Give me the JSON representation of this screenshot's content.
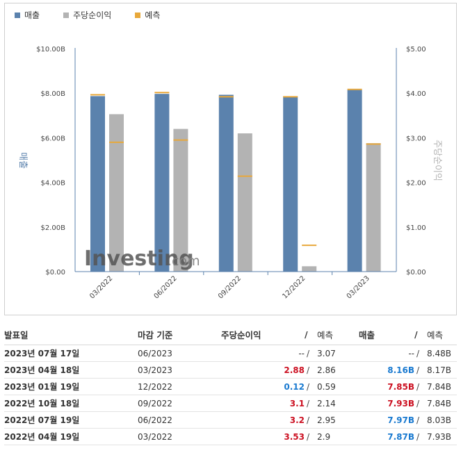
{
  "legend": {
    "items": [
      {
        "label": "매출",
        "color": "#5b82ad"
      },
      {
        "label": "주당순이익",
        "color": "#b3b3b3"
      },
      {
        "label": "예측",
        "color": "#e8a83a"
      }
    ]
  },
  "watermark": {
    "brand": "Investing",
    "suffix": ".com"
  },
  "chart_data": {
    "type": "bar",
    "categories": [
      "03/2022",
      "06/2022",
      "09/2022",
      "12/2022",
      "03/2023"
    ],
    "left_axis": {
      "label": "매출",
      "ticks": [
        "$0.00",
        "$2.00B",
        "$4.00B",
        "$6.00B",
        "$8.00B",
        "$10.00B"
      ],
      "ylim": [
        0,
        10
      ]
    },
    "right_axis": {
      "label": "주당순이익",
      "ticks": [
        "$0.00",
        "$1.00",
        "$2.00",
        "$3.00",
        "$4.00",
        "$5.00"
      ],
      "ylim": [
        0,
        5
      ]
    },
    "series": [
      {
        "name": "매출",
        "axis": "left",
        "values": [
          7.87,
          7.97,
          7.93,
          7.85,
          8.16
        ],
        "color": "#5b82ad"
      },
      {
        "name": "매출 예측",
        "axis": "left",
        "values": [
          7.93,
          8.03,
          7.84,
          7.84,
          8.17
        ],
        "color": "#e8a83a"
      },
      {
        "name": "주당순이익",
        "axis": "right",
        "values": [
          3.53,
          3.2,
          3.1,
          0.12,
          2.88
        ],
        "color": "#b3b3b3"
      },
      {
        "name": "주당순이익 예측",
        "axis": "right",
        "values": [
          2.9,
          2.95,
          2.14,
          0.59,
          2.86
        ],
        "color": "#e8a83a"
      }
    ],
    "grid": false
  },
  "table": {
    "headers": {
      "date": "발표일",
      "period": "마감 기준",
      "eps": "주당순이익",
      "slash": "/",
      "eps_forecast": "예측",
      "revenue": "매출",
      "revenue_forecast": "예측"
    },
    "rows": [
      {
        "date": "2023년 07월 17일",
        "period": "06/2023",
        "eps": "--",
        "eps_class": "neutral",
        "eps_forecast": "3.07",
        "revenue": "--",
        "revenue_class": "neutral",
        "revenue_forecast": "8.48B"
      },
      {
        "date": "2023년 04월 18일",
        "period": "03/2023",
        "eps": "2.88",
        "eps_class": "red",
        "eps_forecast": "2.86",
        "revenue": "8.16B",
        "revenue_class": "blue",
        "revenue_forecast": "8.17B"
      },
      {
        "date": "2023년 01월 19일",
        "period": "12/2022",
        "eps": "0.12",
        "eps_class": "blue",
        "eps_forecast": "0.59",
        "revenue": "7.85B",
        "revenue_class": "red",
        "revenue_forecast": "7.84B"
      },
      {
        "date": "2022년 10월 18일",
        "period": "09/2022",
        "eps": "3.1",
        "eps_class": "red",
        "eps_forecast": "2.14",
        "revenue": "7.93B",
        "revenue_class": "red",
        "revenue_forecast": "7.84B"
      },
      {
        "date": "2022년 07월 19일",
        "period": "06/2022",
        "eps": "3.2",
        "eps_class": "red",
        "eps_forecast": "2.95",
        "revenue": "7.97B",
        "revenue_class": "blue",
        "revenue_forecast": "8.03B"
      },
      {
        "date": "2022년 04월 19일",
        "period": "03/2022",
        "eps": "3.53",
        "eps_class": "red",
        "eps_forecast": "2.9",
        "revenue": "7.87B",
        "revenue_class": "blue",
        "revenue_forecast": "7.93B"
      }
    ]
  }
}
